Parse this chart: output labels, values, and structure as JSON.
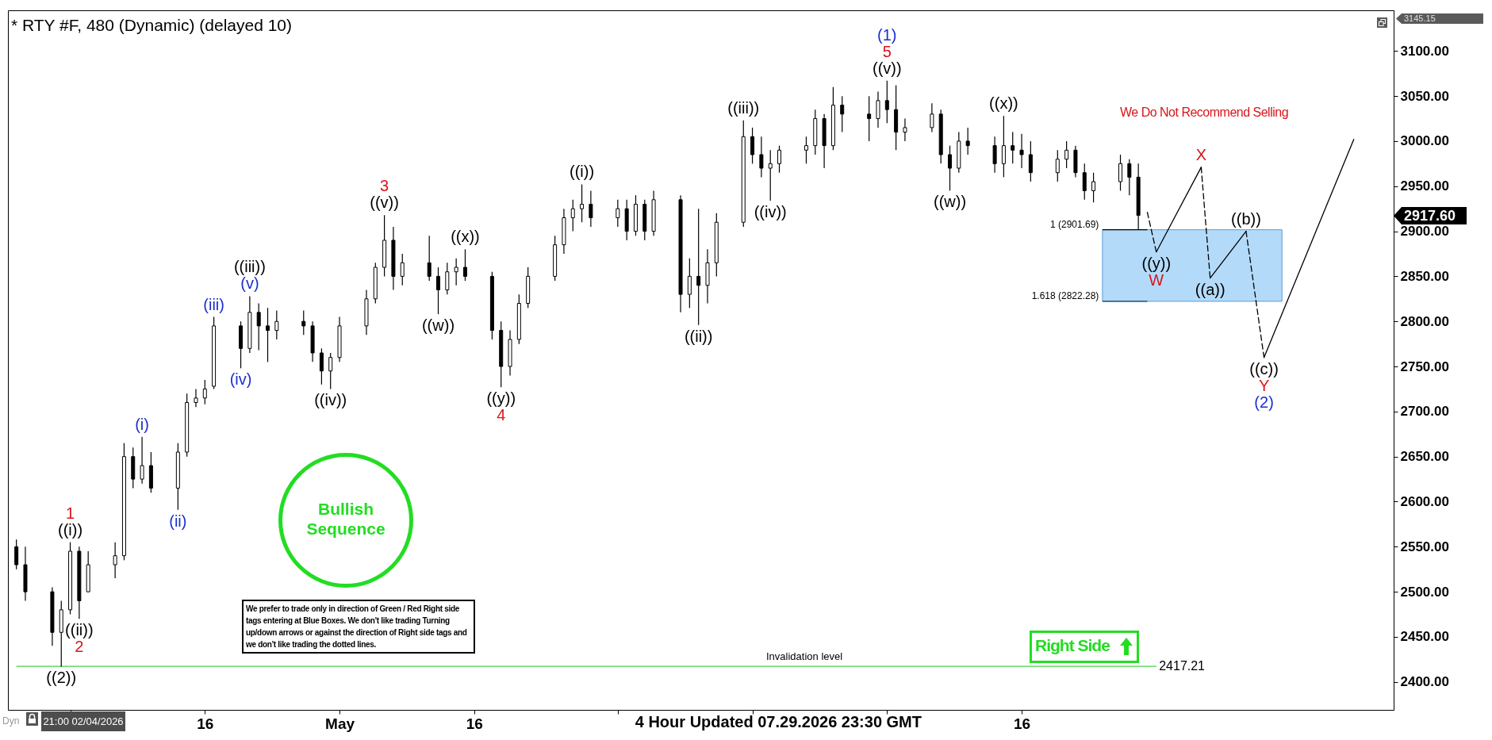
{
  "chart_data": {
    "type": "candlestick",
    "title": "* RTY #F, 480 (Dynamic) (delayed 10)",
    "color": "#000000",
    "x": [
      "2026-03-26",
      "2026-03-27",
      "2026-03-30",
      "2026-03-31",
      "2026-04-01",
      "2026-04-02",
      "2026-04-03",
      "2026-04-06",
      "2026-04-07",
      "2026-04-08",
      "2026-04-09",
      "2026-04-10",
      "2026-04-13",
      "2026-04-14",
      "2026-04-15",
      "2026-04-16",
      "2026-04-17",
      "2026-04-20",
      "2026-04-21",
      "2026-04-22",
      "2026-04-23",
      "2026-04-24",
      "2026-04-27",
      "2026-04-28",
      "2026-04-29",
      "2026-04-30",
      "2026-05-01",
      "2026-05-04",
      "2026-05-05",
      "2026-05-06",
      "2026-05-07",
      "2026-05-08",
      "2026-05-11",
      "2026-05-12",
      "2026-05-13",
      "2026-05-14",
      "2026-05-15",
      "2026-05-18",
      "2026-05-19",
      "2026-05-20",
      "2026-05-21",
      "2026-05-22",
      "2026-05-25",
      "2026-05-26",
      "2026-05-27",
      "2026-05-28",
      "2026-05-29",
      "2026-06-01",
      "2026-06-02",
      "2026-06-03",
      "2026-06-04",
      "2026-06-05",
      "2026-06-08",
      "2026-06-09",
      "2026-06-10",
      "2026-06-11",
      "2026-06-12",
      "2026-06-15",
      "2026-06-16",
      "2026-06-17",
      "2026-06-18",
      "2026-06-19",
      "2026-06-22",
      "2026-06-23",
      "2026-06-24",
      "2026-06-25",
      "2026-06-26",
      "2026-06-29",
      "2026-06-30",
      "2026-07-01",
      "2026-07-02",
      "2026-07-03",
      "2026-07-06",
      "2026-07-07",
      "2026-07-08",
      "2026-07-09",
      "2026-07-10",
      "2026-07-13",
      "2026-07-14",
      "2026-07-15",
      "2026-07-16",
      "2026-07-17",
      "2026-07-20",
      "2026-07-21",
      "2026-07-22",
      "2026-07-23",
      "2026-07-24",
      "2026-07-27",
      "2026-07-28",
      "2026-07-29"
    ],
    "ohlc": [
      [
        2550,
        2558,
        2525,
        2530
      ],
      [
        2530,
        2550,
        2490,
        2500
      ],
      [
        2500,
        2505,
        2440,
        2455
      ],
      [
        2455,
        2490,
        2417,
        2480
      ],
      [
        2480,
        2555,
        2475,
        2545
      ],
      [
        2545,
        2550,
        2470,
        2490
      ],
      [
        2500,
        2545,
        2500,
        2530
      ],
      [
        2530,
        2555,
        2515,
        2540
      ],
      [
        2540,
        2665,
        2535,
        2650
      ],
      [
        2650,
        2660,
        2615,
        2625
      ],
      [
        2625,
        2672,
        2620,
        2640
      ],
      [
        2640,
        2655,
        2610,
        2615
      ],
      [
        2615,
        2665,
        2591,
        2655
      ],
      [
        2655,
        2720,
        2650,
        2710
      ],
      [
        2710,
        2725,
        2705,
        2715
      ],
      [
        2715,
        2735,
        2708,
        2725
      ],
      [
        2728,
        2805,
        2725,
        2795
      ],
      [
        2795,
        2800,
        2748,
        2770
      ],
      [
        2770,
        2828,
        2765,
        2810
      ],
      [
        2810,
        2820,
        2768,
        2795
      ],
      [
        2795,
        2815,
        2755,
        2790
      ],
      [
        2790,
        2812,
        2780,
        2800
      ],
      [
        2800,
        2812,
        2785,
        2795
      ],
      [
        2795,
        2800,
        2755,
        2765
      ],
      [
        2765,
        2770,
        2730,
        2745
      ],
      [
        2745,
        2765,
        2725,
        2760
      ],
      [
        2760,
        2805,
        2755,
        2795
      ],
      [
        2795,
        2835,
        2785,
        2825
      ],
      [
        2825,
        2865,
        2820,
        2860
      ],
      [
        2860,
        2918,
        2850,
        2890
      ],
      [
        2890,
        2905,
        2835,
        2850
      ],
      [
        2850,
        2875,
        2840,
        2865
      ],
      [
        2865,
        2895,
        2845,
        2850
      ],
      [
        2850,
        2860,
        2808,
        2835
      ],
      [
        2835,
        2865,
        2830,
        2855
      ],
      [
        2855,
        2870,
        2840,
        2860
      ],
      [
        2860,
        2880,
        2845,
        2850
      ],
      [
        2850,
        2855,
        2780,
        2790
      ],
      [
        2790,
        2800,
        2727,
        2750
      ],
      [
        2750,
        2790,
        2740,
        2780
      ],
      [
        2780,
        2830,
        2775,
        2820
      ],
      [
        2820,
        2860,
        2815,
        2850
      ],
      [
        2850,
        2895,
        2845,
        2885
      ],
      [
        2885,
        2925,
        2875,
        2915
      ],
      [
        2915,
        2935,
        2900,
        2925
      ],
      [
        2925,
        2952,
        2910,
        2930
      ],
      [
        2930,
        2945,
        2905,
        2915
      ],
      [
        2915,
        2935,
        2905,
        2925
      ],
      [
        2925,
        2935,
        2890,
        2900
      ],
      [
        2900,
        2940,
        2895,
        2930
      ],
      [
        2930,
        2935,
        2890,
        2900
      ],
      [
        2900,
        2945,
        2895,
        2935
      ],
      [
        2935,
        2940,
        2810,
        2830
      ],
      [
        2830,
        2870,
        2815,
        2850
      ],
      [
        2850,
        2925,
        2796,
        2840
      ],
      [
        2840,
        2880,
        2820,
        2865
      ],
      [
        2865,
        2920,
        2850,
        2910
      ],
      [
        2910,
        3023,
        2905,
        3005
      ],
      [
        3005,
        3015,
        2975,
        2985
      ],
      [
        2985,
        3005,
        2960,
        2970
      ],
      [
        2970,
        2990,
        2934,
        2975
      ],
      [
        2975,
        2995,
        2965,
        2990
      ],
      [
        2990,
        3005,
        2975,
        2995
      ],
      [
        2995,
        3035,
        2985,
        3025
      ],
      [
        3025,
        3030,
        2970,
        2995
      ],
      [
        2995,
        3060,
        2990,
        3040
      ],
      [
        3040,
        3050,
        3010,
        3030
      ],
      [
        3030,
        3050,
        3000,
        3025
      ],
      [
        3025,
        3055,
        3015,
        3045
      ],
      [
        3045,
        3067,
        3020,
        3035
      ],
      [
        3035,
        3062,
        2990,
        3010
      ],
      [
        3010,
        3025,
        3000,
        3015
      ],
      [
        3015,
        3042,
        3010,
        3030
      ],
      [
        3030,
        3035,
        2975,
        2985
      ],
      [
        2985,
        2995,
        2945,
        2970
      ],
      [
        2970,
        3010,
        2965,
        3000
      ],
      [
        3000,
        3015,
        2985,
        2995
      ],
      [
        2995,
        3005,
        2965,
        2975
      ],
      [
        2975,
        3028,
        2960,
        2995
      ],
      [
        2995,
        3010,
        2975,
        2990
      ],
      [
        2990,
        3008,
        2970,
        2985
      ],
      [
        2985,
        3000,
        2955,
        2965
      ],
      [
        2965,
        2990,
        2955,
        2980
      ],
      [
        2980,
        3000,
        2970,
        2990
      ],
      [
        2990,
        2995,
        2960,
        2965
      ],
      [
        2965,
        2975,
        2935,
        2945
      ],
      [
        2945,
        2965,
        2932,
        2955
      ],
      [
        2955,
        2985,
        2945,
        2975
      ],
      [
        2975,
        2980,
        2940,
        2960
      ],
      [
        2960,
        2975,
        2902,
        2917.6
      ]
    ],
    "series": [
      {
        "type": "line",
        "line_style": "dashed",
        "color": "#000000",
        "x": [
          "2026-07-30",
          "2026-07-31"
        ],
        "values": [
          2921,
          2877
        ]
      },
      {
        "type": "line",
        "line_style": "solid",
        "color": "#000000",
        "x": [
          "2026-07-31",
          "2026-08-05"
        ],
        "values": [
          2877,
          2971
        ]
      },
      {
        "type": "line",
        "line_style": "dashed",
        "color": "#000000",
        "x": [
          "2026-08-05",
          "2026-08-06"
        ],
        "values": [
          2971,
          2848
        ]
      },
      {
        "type": "line",
        "line_style": "solid",
        "color": "#000000",
        "x": [
          "2026-08-06",
          "2026-08-10"
        ],
        "values": [
          2848,
          2900
        ]
      },
      {
        "type": "line",
        "line_style": "dashed",
        "color": "#000000",
        "x": [
          "2026-08-10",
          "2026-08-12"
        ],
        "values": [
          2900,
          2760
        ]
      },
      {
        "type": "line",
        "line_style": "solid",
        "color": "#000000",
        "x": [
          "2026-08-12",
          "2026-08-22"
        ],
        "values": [
          2760,
          3002
        ]
      }
    ],
    "xlim": [
      "2026-03-25T12:00",
      "2026-08-26"
    ],
    "xticks": [
      {
        "value": "2026-04-01",
        "label": null
      },
      {
        "value": "2026-04-16",
        "label": "16"
      },
      {
        "value": "2026-05-01",
        "label": "May"
      },
      {
        "value": "2026-05-16",
        "label": "16"
      },
      {
        "value": "2026-06-01",
        "label": null
      },
      {
        "value": "2026-06-16",
        "label": null
      },
      {
        "value": "2026-07-01",
        "label": null
      },
      {
        "value": "2026-07-16",
        "label": "16"
      }
    ],
    "ylim": [
      2369,
      3145.15
    ],
    "yticks": [
      {
        "value": 2400,
        "label": "2400.00"
      },
      {
        "value": 2450,
        "label": "2450.00"
      },
      {
        "value": 2500,
        "label": "2500.00"
      },
      {
        "value": 2550,
        "label": "2550.00"
      },
      {
        "value": 2600,
        "label": "2600.00"
      },
      {
        "value": 2650,
        "label": "2650.00"
      },
      {
        "value": 2700,
        "label": "2700.00"
      },
      {
        "value": 2750,
        "label": "2750.00"
      },
      {
        "value": 2800,
        "label": "2800.00"
      },
      {
        "value": 2850,
        "label": "2850.00"
      },
      {
        "value": 2900,
        "label": "2900.00"
      },
      {
        "value": 2950,
        "label": "2950.00"
      },
      {
        "value": 3000,
        "label": "3000.00"
      },
      {
        "value": 3050,
        "label": "3050.00"
      },
      {
        "value": 3100,
        "label": "3100.00"
      }
    ],
    "bands": [
      {
        "axis": "y",
        "from": 2822.28,
        "to": 2901.69,
        "color": "#b3dbf9"
      }
    ],
    "ref_lines": [
      {
        "axis": "y",
        "value": 2901.69,
        "label": "1 (2901.69)",
        "color": "#000000"
      },
      {
        "axis": "y",
        "value": 2822.28,
        "label": "1.618 (2822.28)",
        "color": "#1f3864"
      },
      {
        "axis": "y",
        "value": 2417.21,
        "label": "2417.21",
        "color": "#47d147"
      }
    ],
    "annotations": [
      "We Do Not Recommend Selling",
      "Bullish Sequence",
      "We prefer to trade only in direction of Green / Red Right side tags entering at Blue Boxes. We don't like trading Turning up/down arrows or against the direction of Right side tags and we don't like trading the dotted lines.",
      "Right Side",
      "Invalidation level",
      "4 Hour Updated 07.29.2026 23:30 GMT",
      "21:00 02/04/2026",
      "Dyn",
      "3145.15",
      "2917.60",
      {
        "text": "((2))",
        "x": "2026-03-31",
        "y": 2417
      },
      {
        "text": "((i))",
        "x": "2026-04-01",
        "y": 2555
      },
      {
        "text": "1",
        "x": "2026-04-01",
        "y": 2555
      },
      {
        "text": "((ii))",
        "x": "2026-04-02",
        "y": 2470
      },
      {
        "text": "2",
        "x": "2026-04-02",
        "y": 2470
      },
      {
        "text": "(i)",
        "x": "2026-04-09",
        "y": 2672
      },
      {
        "text": "(ii)",
        "x": "2026-04-13",
        "y": 2591
      },
      {
        "text": "(iii)",
        "x": "2026-04-17",
        "y": 2805
      },
      {
        "text": "(iv)",
        "x": "2026-04-20",
        "y": 2748
      },
      {
        "text": "(v)",
        "x": "2026-04-21",
        "y": 2828
      },
      {
        "text": "((iii))",
        "x": "2026-04-21",
        "y": 2828
      },
      {
        "text": "((iv))",
        "x": "2026-04-30",
        "y": 2725
      },
      {
        "text": "((v))",
        "x": "2026-05-06",
        "y": 2918
      },
      {
        "text": "3",
        "x": "2026-05-06",
        "y": 2918
      },
      {
        "text": "((w))",
        "x": "2026-05-12",
        "y": 2808
      },
      {
        "text": "((x))",
        "x": "2026-05-15",
        "y": 2880
      },
      {
        "text": "((y))",
        "x": "2026-05-19",
        "y": 2727
      },
      {
        "text": "4",
        "x": "2026-05-19",
        "y": 2727
      },
      {
        "text": "((i))",
        "x": "2026-05-28",
        "y": 2952
      },
      {
        "text": "((ii))",
        "x": "2026-06-10",
        "y": 2796
      },
      {
        "text": "((iii))",
        "x": "2026-06-15",
        "y": 3023
      },
      {
        "text": "((iv))",
        "x": "2026-06-18",
        "y": 2934
      },
      {
        "text": "((v))",
        "x": "2026-07-01",
        "y": 3067
      },
      {
        "text": "5",
        "x": "2026-07-01",
        "y": 3067
      },
      {
        "text": "(1)",
        "x": "2026-07-01",
        "y": 3067
      },
      {
        "text": "((w))",
        "x": "2026-07-08",
        "y": 2945
      },
      {
        "text": "((x))",
        "x": "2026-07-14",
        "y": 3028
      },
      {
        "text": "((y))",
        "x": "2026-07-31",
        "y": 2877
      },
      {
        "text": "W",
        "x": "2026-07-31",
        "y": 2877
      },
      {
        "text": "X",
        "x": "2026-08-05",
        "y": 2971
      },
      {
        "text": "((a))",
        "x": "2026-08-06",
        "y": 2848
      },
      {
        "text": "((b))",
        "x": "2026-08-10",
        "y": 2900
      },
      {
        "text": "((c))",
        "x": "2026-08-12",
        "y": 2760
      },
      {
        "text": "Y",
        "x": "2026-08-12",
        "y": 2760
      },
      {
        "text": "(2)",
        "x": "2026-08-12",
        "y": 2760
      }
    ]
  }
}
